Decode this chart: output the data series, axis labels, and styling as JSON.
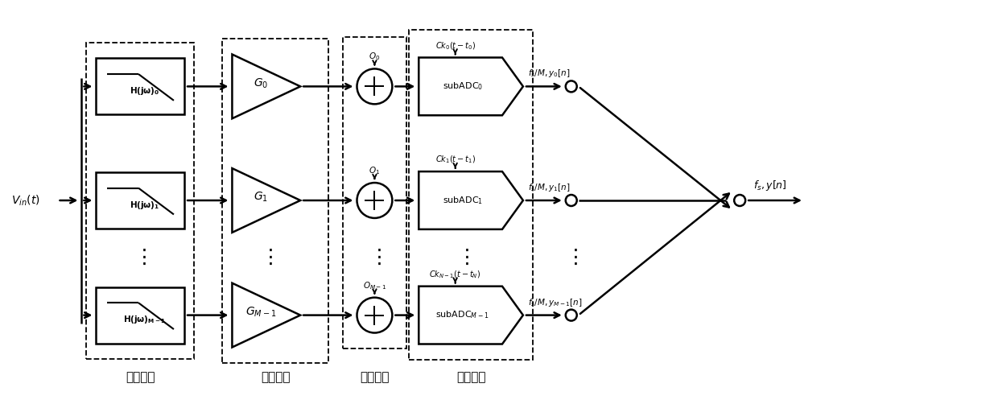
{
  "bg_color": "#ffffff",
  "line_color": "#000000",
  "fig_width": 12.4,
  "fig_height": 4.97,
  "labels": {
    "vin": "$V_{in}(t)$",
    "h0": "$\\mathbf{H(j\\omega)_0}$",
    "h1": "$\\mathbf{H(j\\omega)_1}$",
    "hm": "$\\mathbf{H(j\\omega)_{M-1}}$",
    "g0": "$G_0$",
    "g1": "$G_1$",
    "gm": "$G_{M-1}$",
    "o0": "$O_0$",
    "o1": "$O_1$",
    "om": "$O_{M-1}$",
    "ck0": "$Ck_0(t-t_0)$",
    "ck1": "$Ck_1(t-t_1)$",
    "ckm": "$Ck_{N-1}(t-t_N)$",
    "sub0": "subADC$_0$",
    "sub1": "subADC$_1$",
    "subm": "subADC$_{M-1}$",
    "out0": "$f_s/M, y_0[n]$",
    "out1": "$f_s/M, y_1[n]$",
    "outm": "$f_s/M, y_{M-1}[n]$",
    "final": "$f_s, y[n]$",
    "bw": "带宽失配",
    "gain": "增益失配",
    "offset": "失调失配",
    "timing": "时间失配"
  }
}
